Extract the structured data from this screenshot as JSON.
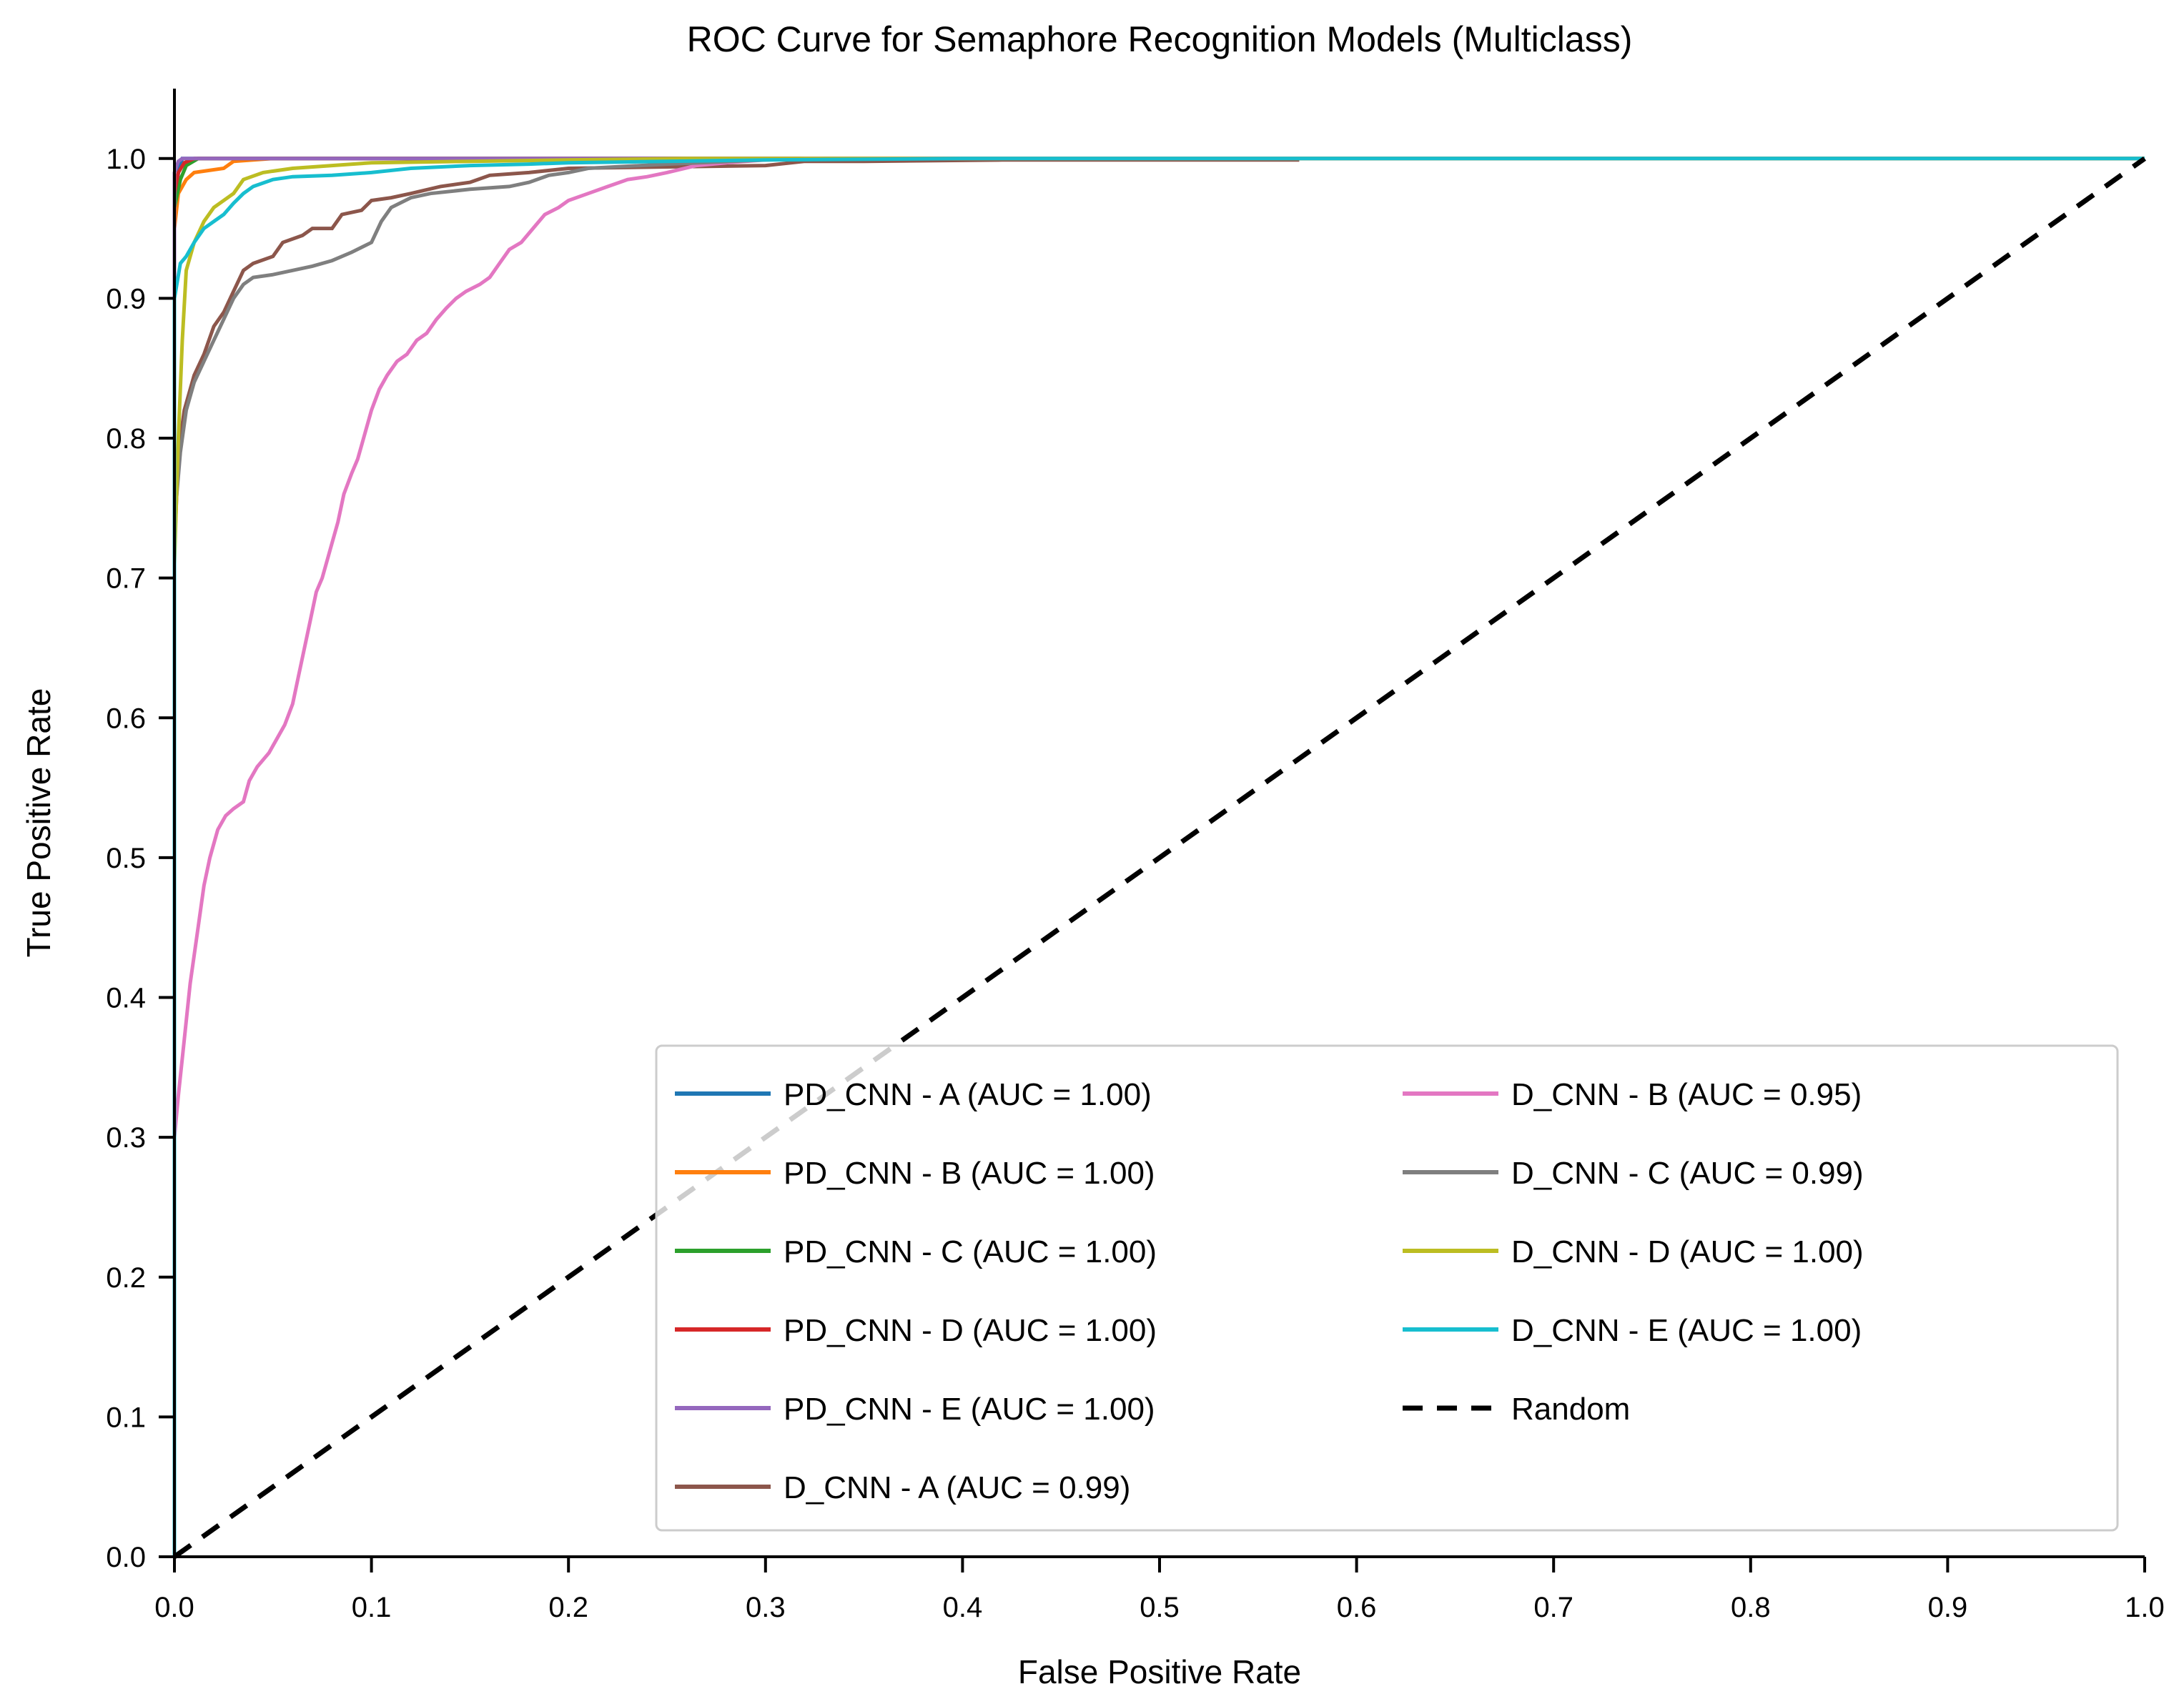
{
  "chart_data": {
    "type": "line",
    "title": "ROC Curve for Semaphore Recognition Models (Multiclass)",
    "xlabel": "False Positive Rate",
    "ylabel": "True Positive Rate",
    "xlim": [
      0.0,
      1.0
    ],
    "ylim": [
      0.0,
      1.05
    ],
    "x_ticks": [
      "0.0",
      "0.1",
      "0.2",
      "0.3",
      "0.4",
      "0.5",
      "0.6",
      "0.7",
      "0.8",
      "0.9",
      "1.0"
    ],
    "y_ticks": [
      "0.0",
      "0.1",
      "0.2",
      "0.3",
      "0.4",
      "0.5",
      "0.6",
      "0.7",
      "0.8",
      "0.9",
      "1.0"
    ],
    "grid": false,
    "legend_position": "lower-right",
    "legend_columns": 2,
    "series": [
      {
        "name": "PD_CNN - A (AUC = 1.00)",
        "color": "#1f77b4",
        "dash": "solid",
        "points": [
          [
            0.0,
            0.0
          ],
          [
            0.0,
            0.96
          ],
          [
            0.002,
            0.99
          ],
          [
            0.004,
            1.0
          ],
          [
            1.0,
            1.0
          ]
        ]
      },
      {
        "name": "PD_CNN - B (AUC = 1.00)",
        "color": "#ff7f0e",
        "dash": "solid",
        "points": [
          [
            0.0,
            0.0
          ],
          [
            0.0,
            0.95
          ],
          [
            0.002,
            0.975
          ],
          [
            0.006,
            0.985
          ],
          [
            0.01,
            0.99
          ],
          [
            0.025,
            0.993
          ],
          [
            0.03,
            0.998
          ],
          [
            0.05,
            1.0
          ],
          [
            1.0,
            1.0
          ]
        ]
      },
      {
        "name": "PD_CNN - C (AUC = 1.00)",
        "color": "#2ca02c",
        "dash": "solid",
        "points": [
          [
            0.0,
            0.0
          ],
          [
            0.0,
            0.965
          ],
          [
            0.003,
            0.985
          ],
          [
            0.006,
            0.995
          ],
          [
            0.012,
            1.0
          ],
          [
            1.0,
            1.0
          ]
        ]
      },
      {
        "name": "PD_CNN - D (AUC = 1.00)",
        "color": "#d62728",
        "dash": "solid",
        "points": [
          [
            0.0,
            0.0
          ],
          [
            0.0,
            0.975
          ],
          [
            0.002,
            0.99
          ],
          [
            0.005,
            0.997
          ],
          [
            0.01,
            1.0
          ],
          [
            1.0,
            1.0
          ]
        ]
      },
      {
        "name": "PD_CNN - E (AUC = 1.00)",
        "color": "#9467bd",
        "dash": "solid",
        "points": [
          [
            0.0,
            0.0
          ],
          [
            0.0,
            0.99
          ],
          [
            0.002,
            0.998
          ],
          [
            0.004,
            1.0
          ],
          [
            1.0,
            1.0
          ]
        ]
      },
      {
        "name": "D_CNN - A (AUC = 0.99)",
        "color": "#8c564b",
        "dash": "solid",
        "points": [
          [
            0.0,
            0.0
          ],
          [
            0.0,
            0.72
          ],
          [
            0.002,
            0.79
          ],
          [
            0.005,
            0.82
          ],
          [
            0.01,
            0.845
          ],
          [
            0.015,
            0.86
          ],
          [
            0.02,
            0.88
          ],
          [
            0.025,
            0.89
          ],
          [
            0.03,
            0.905
          ],
          [
            0.035,
            0.92
          ],
          [
            0.04,
            0.925
          ],
          [
            0.05,
            0.93
          ],
          [
            0.055,
            0.94
          ],
          [
            0.065,
            0.945
          ],
          [
            0.07,
            0.95
          ],
          [
            0.08,
            0.95
          ],
          [
            0.085,
            0.96
          ],
          [
            0.095,
            0.963
          ],
          [
            0.1,
            0.97
          ],
          [
            0.11,
            0.972
          ],
          [
            0.12,
            0.975
          ],
          [
            0.135,
            0.98
          ],
          [
            0.15,
            0.983
          ],
          [
            0.16,
            0.988
          ],
          [
            0.18,
            0.99
          ],
          [
            0.2,
            0.993
          ],
          [
            0.25,
            0.994
          ],
          [
            0.3,
            0.995
          ],
          [
            0.32,
            0.998
          ],
          [
            0.35,
            0.998
          ],
          [
            0.42,
            0.999
          ],
          [
            0.57,
            0.999
          ],
          [
            0.57,
            1.0
          ],
          [
            1.0,
            1.0
          ]
        ]
      },
      {
        "name": "D_CNN - B (AUC = 0.95)",
        "color": "#e377c2",
        "dash": "solid",
        "points": [
          [
            0.0,
            0.0
          ],
          [
            0.0,
            0.3
          ],
          [
            0.002,
            0.33
          ],
          [
            0.005,
            0.37
          ],
          [
            0.008,
            0.41
          ],
          [
            0.012,
            0.45
          ],
          [
            0.015,
            0.48
          ],
          [
            0.018,
            0.5
          ],
          [
            0.022,
            0.52
          ],
          [
            0.026,
            0.53
          ],
          [
            0.03,
            0.535
          ],
          [
            0.035,
            0.54
          ],
          [
            0.038,
            0.555
          ],
          [
            0.042,
            0.565
          ],
          [
            0.048,
            0.575
          ],
          [
            0.052,
            0.585
          ],
          [
            0.056,
            0.595
          ],
          [
            0.06,
            0.61
          ],
          [
            0.063,
            0.63
          ],
          [
            0.066,
            0.65
          ],
          [
            0.069,
            0.67
          ],
          [
            0.072,
            0.69
          ],
          [
            0.075,
            0.7
          ],
          [
            0.079,
            0.72
          ],
          [
            0.083,
            0.74
          ],
          [
            0.086,
            0.76
          ],
          [
            0.09,
            0.775
          ],
          [
            0.093,
            0.785
          ],
          [
            0.096,
            0.8
          ],
          [
            0.1,
            0.82
          ],
          [
            0.104,
            0.835
          ],
          [
            0.108,
            0.845
          ],
          [
            0.113,
            0.855
          ],
          [
            0.118,
            0.86
          ],
          [
            0.123,
            0.87
          ],
          [
            0.128,
            0.875
          ],
          [
            0.133,
            0.885
          ],
          [
            0.138,
            0.893
          ],
          [
            0.143,
            0.9
          ],
          [
            0.148,
            0.905
          ],
          [
            0.155,
            0.91
          ],
          [
            0.16,
            0.915
          ],
          [
            0.165,
            0.925
          ],
          [
            0.17,
            0.935
          ],
          [
            0.176,
            0.94
          ],
          [
            0.182,
            0.95
          ],
          [
            0.188,
            0.96
          ],
          [
            0.195,
            0.965
          ],
          [
            0.2,
            0.97
          ],
          [
            0.21,
            0.975
          ],
          [
            0.22,
            0.98
          ],
          [
            0.23,
            0.985
          ],
          [
            0.24,
            0.987
          ],
          [
            0.25,
            0.99
          ],
          [
            0.265,
            0.995
          ],
          [
            0.28,
            0.997
          ],
          [
            0.3,
            0.999
          ],
          [
            0.32,
            1.0
          ],
          [
            1.0,
            1.0
          ]
        ]
      },
      {
        "name": "D_CNN - C (AUC = 0.99)",
        "color": "#7f7f7f",
        "dash": "solid",
        "points": [
          [
            0.0,
            0.0
          ],
          [
            0.0,
            0.74
          ],
          [
            0.003,
            0.79
          ],
          [
            0.006,
            0.82
          ],
          [
            0.01,
            0.84
          ],
          [
            0.015,
            0.855
          ],
          [
            0.02,
            0.87
          ],
          [
            0.025,
            0.885
          ],
          [
            0.03,
            0.9
          ],
          [
            0.035,
            0.91
          ],
          [
            0.04,
            0.915
          ],
          [
            0.05,
            0.917
          ],
          [
            0.06,
            0.92
          ],
          [
            0.07,
            0.923
          ],
          [
            0.08,
            0.927
          ],
          [
            0.09,
            0.933
          ],
          [
            0.1,
            0.94
          ],
          [
            0.105,
            0.955
          ],
          [
            0.11,
            0.965
          ],
          [
            0.12,
            0.972
          ],
          [
            0.13,
            0.975
          ],
          [
            0.15,
            0.978
          ],
          [
            0.17,
            0.98
          ],
          [
            0.18,
            0.983
          ],
          [
            0.19,
            0.988
          ],
          [
            0.2,
            0.99
          ],
          [
            0.21,
            0.993
          ],
          [
            0.25,
            0.996
          ],
          [
            0.3,
            0.999
          ],
          [
            0.33,
            1.0
          ],
          [
            1.0,
            1.0
          ]
        ]
      },
      {
        "name": "D_CNN - D (AUC = 1.00)",
        "color": "#bcbd22",
        "dash": "solid",
        "points": [
          [
            0.0,
            0.0
          ],
          [
            0.0,
            0.71
          ],
          [
            0.002,
            0.8
          ],
          [
            0.004,
            0.87
          ],
          [
            0.006,
            0.92
          ],
          [
            0.01,
            0.94
          ],
          [
            0.015,
            0.955
          ],
          [
            0.02,
            0.965
          ],
          [
            0.025,
            0.97
          ],
          [
            0.03,
            0.975
          ],
          [
            0.035,
            0.985
          ],
          [
            0.045,
            0.99
          ],
          [
            0.06,
            0.993
          ],
          [
            0.08,
            0.995
          ],
          [
            0.1,
            0.997
          ],
          [
            0.15,
            0.998
          ],
          [
            0.2,
            0.999
          ],
          [
            0.26,
            1.0
          ],
          [
            1.0,
            1.0
          ]
        ]
      },
      {
        "name": "D_CNN - E (AUC = 1.00)",
        "color": "#17becf",
        "dash": "solid",
        "points": [
          [
            0.0,
            0.0
          ],
          [
            0.0,
            0.9
          ],
          [
            0.003,
            0.925
          ],
          [
            0.006,
            0.93
          ],
          [
            0.01,
            0.94
          ],
          [
            0.015,
            0.95
          ],
          [
            0.02,
            0.955
          ],
          [
            0.025,
            0.96
          ],
          [
            0.03,
            0.968
          ],
          [
            0.035,
            0.975
          ],
          [
            0.04,
            0.98
          ],
          [
            0.05,
            0.985
          ],
          [
            0.06,
            0.987
          ],
          [
            0.08,
            0.988
          ],
          [
            0.1,
            0.99
          ],
          [
            0.12,
            0.993
          ],
          [
            0.15,
            0.995
          ],
          [
            0.18,
            0.996
          ],
          [
            0.2,
            0.997
          ],
          [
            0.25,
            0.998
          ],
          [
            0.3,
            0.999
          ],
          [
            0.4,
            1.0
          ],
          [
            1.0,
            1.0
          ]
        ]
      },
      {
        "name": "Random",
        "color": "#000000",
        "dash": "dashed",
        "points": [
          [
            0.0,
            0.0
          ],
          [
            1.0,
            1.0
          ]
        ]
      }
    ]
  }
}
